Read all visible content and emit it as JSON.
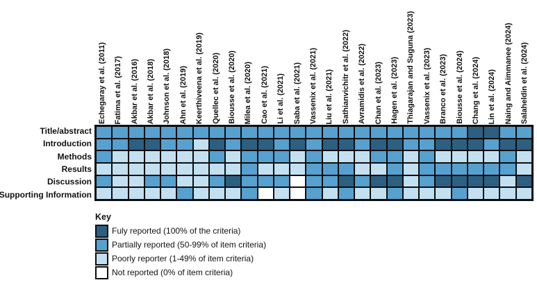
{
  "chart_data": {
    "type": "heatmap",
    "description": "Reporting completeness of manuscript sections across included studies",
    "columns": [
      "Echegaray et al. (2011)",
      "Fatima et al. (2017)",
      "Akbar et al. (2016)",
      "Akbar et al. (2018)",
      "Johnson et al. (2018)",
      "Ahn et al. (2019)",
      "Keerthiveena et al. (2019)",
      "Quellec et al. (2020)",
      "Biousse et al. (2020)",
      "Milea et al. (2020)",
      "Cao et al. (2021)",
      "Li et al. (2021)",
      "Saba et al. (2021)",
      "Vassenix et al. (2021)",
      "Liu et al. (2021)",
      "Sathianvichitr et al. (2022)",
      "Avramidis et al. (2022)",
      "Chan et al. (2023)",
      "Hagen et al. (2023)",
      "Thiagarajan and Suguna (2023)",
      "Vassenix et al. (2023)",
      "Branco et al. (2023)",
      "Biousse et al. (2024)",
      "Chang et al. (2024)",
      "Lin et al. (2024)",
      "Naing and Aimmanee (2024)",
      "Salaheldin et al. (2024)"
    ],
    "rows": [
      "Title/abstract",
      "Introduction",
      "Methods",
      "Results",
      "Discussion",
      "Supporting Information"
    ],
    "values": [
      [
        "M",
        "M",
        "M",
        "M",
        "M",
        "M",
        "M",
        "M",
        "M",
        "M",
        "M",
        "M",
        "M",
        "M",
        "M",
        "M",
        "M",
        "M",
        "M",
        "M",
        "M",
        "M",
        "M",
        "D",
        "D",
        "M",
        "M"
      ],
      [
        "M",
        "M",
        "D",
        "D",
        "M",
        "M",
        "L",
        "D",
        "M",
        "D",
        "D",
        "M",
        "D",
        "M",
        "D",
        "D",
        "M",
        "D",
        "D",
        "M",
        "M",
        "D",
        "D",
        "D",
        "M",
        "D",
        "D"
      ],
      [
        "M",
        "L",
        "L",
        "L",
        "L",
        "L",
        "L",
        "M",
        "L",
        "M",
        "M",
        "M",
        "L",
        "M",
        "L",
        "L",
        "L",
        "M",
        "M",
        "L",
        "M",
        "L",
        "L",
        "L",
        "L",
        "M",
        "L"
      ],
      [
        "L",
        "L",
        "L",
        "L",
        "L",
        "L",
        "L",
        "L",
        "L",
        "M",
        "L",
        "L",
        "L",
        "M",
        "M",
        "M",
        "L",
        "L",
        "M",
        "L",
        "M",
        "M",
        "M",
        "M",
        "M",
        "M",
        "L"
      ],
      [
        "M",
        "L",
        "L",
        "M",
        "M",
        "L",
        "L",
        "M",
        "D",
        "M",
        "M",
        "M",
        "W",
        "M",
        "M",
        "D",
        "M",
        "D",
        "D",
        "L",
        "M",
        "D",
        "D",
        "D",
        "D",
        "L",
        "D"
      ],
      [
        "L",
        "L",
        "L",
        "L",
        "L",
        "M",
        "L",
        "L",
        "L",
        "M",
        "W",
        "L",
        "W",
        "M",
        "L",
        "M",
        "L",
        "L",
        "M",
        "L",
        "L",
        "L",
        "M",
        "L",
        "L",
        "L",
        "L"
      ]
    ],
    "code_colors": {
      "D": "#2d5f80",
      "M": "#56a1d0",
      "L": "#c3e0f1",
      "W": "#ffffff"
    },
    "legend": {
      "title": "Key",
      "entries": [
        {
          "code": "D",
          "color": "#2d5f80",
          "label": "Fuly reported (100% of the criteria)"
        },
        {
          "code": "M",
          "color": "#56a1d0",
          "label": "Partially reported (50-99% of item criteria)"
        },
        {
          "code": "L",
          "color": "#c3e0f1",
          "label": "Poorly reporter (1-49% of item criteria)"
        },
        {
          "code": "W",
          "color": "#ffffff",
          "label": "Not reported (0% of item criteria)"
        }
      ]
    },
    "layout": {
      "grid_lines": "black",
      "legend_position": "bottom-left",
      "column_labels_rotated": true
    }
  }
}
